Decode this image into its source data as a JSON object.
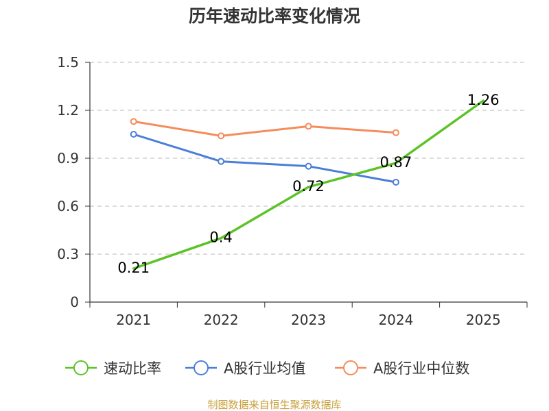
{
  "chart_data": {
    "type": "line",
    "title": "历年速动比率变化情况",
    "categories": [
      "2021",
      "2022",
      "2023",
      "2024",
      "2025"
    ],
    "ylim": [
      0,
      1.5
    ],
    "yticks": [
      0,
      0.3,
      0.6,
      0.9,
      1.2,
      1.5
    ],
    "ytick_labels": [
      "0",
      "0.3",
      "0.6",
      "0.9",
      "1.2",
      "1.5"
    ],
    "grid": true,
    "legend_position": "bottom",
    "series": [
      {
        "name": "速动比率",
        "color": "#5cc327",
        "values": [
          0.21,
          0.4,
          0.72,
          0.87,
          1.26
        ],
        "labels": [
          "0.21",
          "0.4",
          "0.72",
          "0.87",
          "1.26"
        ]
      },
      {
        "name": "A股行业均值",
        "color": "#4a7fd8",
        "values": [
          1.05,
          0.88,
          0.85,
          0.75,
          null
        ]
      },
      {
        "name": "A股行业中位数",
        "color": "#f58c5a",
        "values": [
          1.13,
          1.04,
          1.1,
          1.06,
          null
        ]
      }
    ]
  },
  "footer": {
    "source": "制图数据来自恒生聚源数据库"
  }
}
